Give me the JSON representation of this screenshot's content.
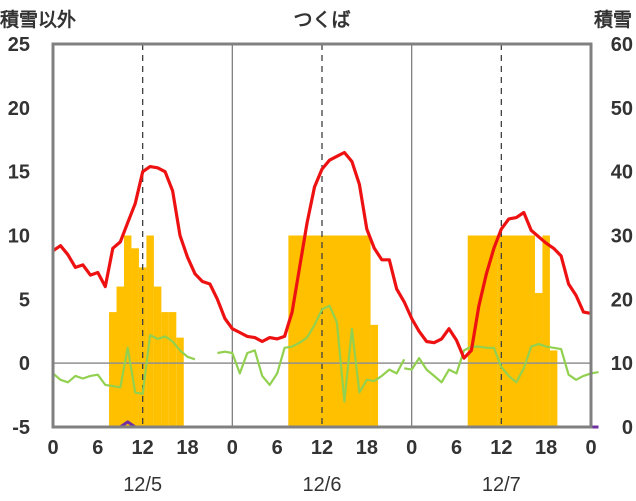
{
  "chart_data": {
    "type": "combo",
    "title": "つくば",
    "left_axis_label": "積雪以外",
    "right_axis_label": "積雪",
    "left_ylim": [
      -5,
      25
    ],
    "left_ticks": [
      "25",
      "20",
      "15",
      "10",
      "5",
      "0",
      "-5"
    ],
    "right_ylim": [
      0,
      60
    ],
    "right_ticks": [
      "60",
      "50",
      "40",
      "30",
      "20",
      "10",
      "0"
    ],
    "x_tick_labels": [
      "0",
      "6",
      "12",
      "18",
      "0",
      "6",
      "12",
      "18",
      "0",
      "6",
      "12",
      "18",
      "0"
    ],
    "date_labels": [
      "12/5",
      "12/6",
      "12/7"
    ],
    "grid": "vertical dashed at 12h, solid at day boundaries",
    "colors": {
      "red": "#ee1111",
      "green": "#92d050",
      "bars": "#ffc000",
      "purple": "#7030a0"
    },
    "red_series": [
      [
        0,
        8.8
      ],
      [
        1,
        9.2
      ],
      [
        2,
        8.5
      ],
      [
        3,
        7.5
      ],
      [
        4,
        7.7
      ],
      [
        5,
        6.9
      ],
      [
        6,
        7.1
      ],
      [
        7,
        6.0
      ],
      [
        8,
        9.0
      ],
      [
        9,
        9.5
      ],
      [
        10,
        11.0
      ],
      [
        11,
        12.5
      ],
      [
        12,
        15.0
      ],
      [
        13,
        15.4
      ],
      [
        14,
        15.3
      ],
      [
        15,
        15.0
      ],
      [
        16,
        13.5
      ],
      [
        17,
        10.0
      ],
      [
        18,
        8.3
      ],
      [
        19,
        7.0
      ],
      [
        20,
        6.4
      ],
      [
        21,
        6.2
      ],
      [
        22,
        5.0
      ],
      [
        23,
        3.5
      ],
      [
        24,
        2.7
      ],
      [
        25,
        2.4
      ],
      [
        26,
        2.1
      ],
      [
        27,
        2.0
      ],
      [
        28,
        1.7
      ],
      [
        29,
        2.0
      ],
      [
        30,
        1.9
      ],
      [
        31,
        2.1
      ],
      [
        32,
        4.0
      ],
      [
        33,
        7.5
      ],
      [
        34,
        11.0
      ],
      [
        35,
        13.8
      ],
      [
        36,
        15.2
      ],
      [
        37,
        15.9
      ],
      [
        38,
        16.2
      ],
      [
        39,
        16.5
      ],
      [
        40,
        15.8
      ],
      [
        41,
        14.0
      ],
      [
        42,
        10.5
      ],
      [
        43,
        9.0
      ],
      [
        44,
        8.1
      ],
      [
        45,
        8.1
      ],
      [
        46,
        5.8
      ],
      [
        47,
        4.8
      ],
      [
        48,
        3.5
      ],
      [
        49,
        2.5
      ],
      [
        50,
        1.7
      ],
      [
        51,
        1.6
      ],
      [
        52,
        1.9
      ],
      [
        53,
        2.7
      ],
      [
        54,
        1.8
      ],
      [
        55,
        0.4
      ],
      [
        56,
        1.0
      ],
      [
        57,
        4.5
      ],
      [
        58,
        7.0
      ],
      [
        59,
        9.0
      ],
      [
        60,
        10.5
      ],
      [
        61,
        11.3
      ],
      [
        62,
        11.4
      ],
      [
        63,
        11.8
      ],
      [
        64,
        10.4
      ],
      [
        65,
        9.9
      ],
      [
        66,
        9.4
      ],
      [
        67,
        9.0
      ],
      [
        68,
        8.4
      ],
      [
        69,
        6.2
      ],
      [
        70,
        5.3
      ],
      [
        71,
        4.0
      ],
      [
        72,
        3.9
      ]
    ],
    "green_series": [
      [
        [
          0,
          -0.8
        ],
        [
          1,
          -1.3
        ],
        [
          2,
          -1.5
        ],
        [
          3,
          -1.0
        ],
        [
          4,
          -1.2
        ],
        [
          5,
          -1.0
        ],
        [
          6,
          -0.9
        ],
        [
          7,
          -1.7
        ],
        [
          8,
          -1.8
        ],
        [
          9,
          -1.9
        ],
        [
          10,
          1.2
        ],
        [
          11,
          -2.3
        ],
        [
          12,
          -2.4
        ],
        [
          13,
          2.2
        ],
        [
          14,
          1.9
        ],
        [
          15,
          2.1
        ],
        [
          16,
          1.7
        ],
        [
          17,
          1.0
        ],
        [
          18,
          0.5
        ],
        [
          19,
          0.3
        ]
      ],
      [
        [
          22,
          0.8
        ],
        [
          23,
          0.9
        ],
        [
          24,
          0.8
        ],
        [
          25,
          -0.8
        ],
        [
          26,
          0.8
        ],
        [
          27,
          1.0
        ],
        [
          28,
          -1.0
        ],
        [
          29,
          -1.7
        ],
        [
          30,
          -0.8
        ],
        [
          31,
          1.2
        ],
        [
          32,
          1.3
        ],
        [
          33,
          1.6
        ],
        [
          34,
          2.0
        ],
        [
          35,
          3.0
        ],
        [
          36,
          4.2
        ],
        [
          37,
          4.5
        ],
        [
          38,
          3.2
        ],
        [
          39,
          -3.0
        ],
        [
          40,
          2.7
        ],
        [
          41,
          -2.3
        ],
        [
          42,
          -1.3
        ],
        [
          43,
          -1.4
        ],
        [
          44,
          -1.0
        ],
        [
          45,
          -0.5
        ],
        [
          46,
          -0.8
        ],
        [
          47,
          0.3
        ]
      ],
      [
        [
          47,
          -0.4
        ],
        [
          48,
          -0.5
        ],
        [
          49,
          0.4
        ],
        [
          50,
          -0.5
        ],
        [
          51,
          -1.0
        ],
        [
          52,
          -1.5
        ],
        [
          53,
          -0.5
        ],
        [
          54,
          -0.8
        ],
        [
          55,
          1.0
        ],
        [
          56,
          1.3
        ],
        [
          57,
          1.3
        ],
        [
          58,
          1.2
        ],
        [
          59,
          1.2
        ],
        [
          60,
          -0.3
        ],
        [
          61,
          -1.0
        ],
        [
          62,
          -1.5
        ],
        [
          63,
          -0.4
        ],
        [
          64,
          1.3
        ],
        [
          65,
          1.5
        ],
        [
          66,
          1.3
        ],
        [
          67,
          1.2
        ],
        [
          68,
          1.1
        ],
        [
          69,
          -0.9
        ],
        [
          70,
          -1.3
        ],
        [
          71,
          -1.0
        ],
        [
          72,
          -0.8
        ],
        [
          73,
          -0.7
        ]
      ]
    ],
    "snow_bars": [
      [
        7.5,
        8.5,
        18
      ],
      [
        8.5,
        9.5,
        22
      ],
      [
        9.5,
        10.5,
        30
      ],
      [
        10.5,
        11.5,
        28
      ],
      [
        11.5,
        12.5,
        25
      ],
      [
        12.5,
        13.5,
        30
      ],
      [
        13.5,
        14.5,
        22
      ],
      [
        14.5,
        15.5,
        18
      ],
      [
        15.5,
        16.5,
        18
      ],
      [
        16.5,
        17.5,
        14
      ],
      [
        31.5,
        42.5,
        30
      ],
      [
        31.5,
        42.5,
        16
      ],
      [
        42.5,
        43.5,
        16
      ],
      [
        55.5,
        59.5,
        30
      ],
      [
        59.5,
        63.5,
        30
      ],
      [
        63.5,
        64.5,
        30
      ],
      [
        64.5,
        65.5,
        21
      ],
      [
        65.5,
        66.5,
        30
      ],
      [
        66.5,
        67.5,
        12
      ]
    ],
    "purple_series": [
      [
        0,
        -5
      ],
      [
        9,
        -5
      ],
      [
        10,
        -4.6
      ],
      [
        11,
        -5
      ],
      [
        73,
        -5
      ]
    ]
  }
}
